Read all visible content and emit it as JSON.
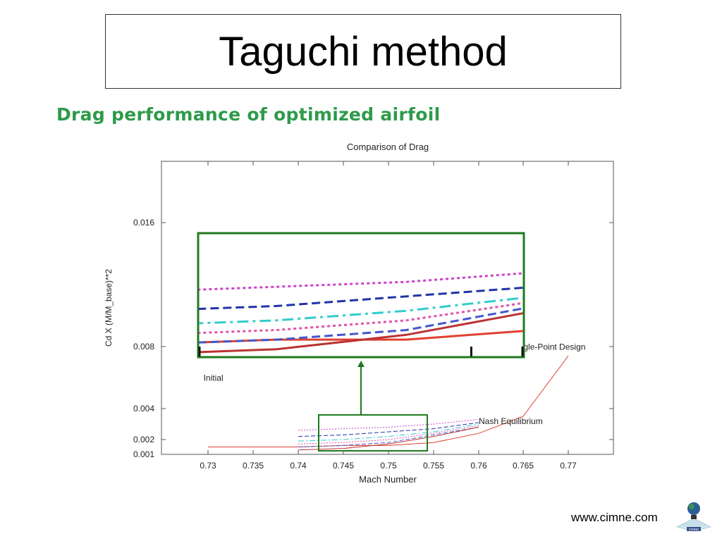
{
  "slide": {
    "title": "Taguchi method",
    "subtitle": "Drag performance of optimized airfoil",
    "footer_url": "www.cimne.com",
    "logo_text": "CIMNE",
    "accent_color": "#2e9a4a"
  },
  "chart_data": {
    "type": "line",
    "title": "Comparison of Drag",
    "xlabel": "Mach Number",
    "ylabel": "Cd X (M/M_base)**2",
    "xlim": [
      0.725,
      0.775
    ],
    "ylim": [
      0.001,
      0.02
    ],
    "x_ticks": [
      0.73,
      0.735,
      0.74,
      0.745,
      0.75,
      0.755,
      0.76,
      0.765,
      0.77
    ],
    "x_tick_labels": [
      "0.73",
      "0.735",
      "0.74",
      "0.745",
      "0.75",
      "0.755",
      "0.76",
      "0.765",
      "0.77"
    ],
    "y_ticks": [
      0.001,
      0.002,
      0.004,
      0.008,
      0.016
    ],
    "y_tick_labels": [
      "0.001",
      "0.002",
      "0.004",
      "0.008",
      "0.016"
    ],
    "grid": false,
    "series": [
      {
        "name": "Initial",
        "color": "#e04030",
        "style": "solid",
        "width": 1,
        "x": [
          0.73,
          0.735,
          0.74,
          0.745,
          0.75,
          0.755,
          0.76,
          0.765,
          0.77
        ],
        "y": [
          0.0015,
          0.0015,
          0.0015,
          0.0016,
          0.0016,
          0.0018,
          0.0024,
          0.0035,
          0.0074
        ]
      },
      {
        "color": "#cc44cc",
        "style": "dotted",
        "width": 1,
        "x": [
          0.74,
          0.745,
          0.75,
          0.755,
          0.76
        ],
        "y": [
          0.0026,
          0.0027,
          0.0028,
          0.003,
          0.0033
        ]
      },
      {
        "color": "#2233aa",
        "style": "dashed",
        "width": 1,
        "x": [
          0.74,
          0.745,
          0.75,
          0.755,
          0.76
        ],
        "y": [
          0.0022,
          0.0023,
          0.0025,
          0.0027,
          0.0031
        ]
      },
      {
        "color": "#33cccc",
        "style": "dashdot",
        "width": 1,
        "x": [
          0.74,
          0.745,
          0.75,
          0.755,
          0.76
        ],
        "y": [
          0.0019,
          0.002,
          0.0022,
          0.0025,
          0.003
        ]
      },
      {
        "color": "#dd55aa",
        "style": "dotted",
        "width": 1,
        "x": [
          0.74,
          0.745,
          0.75,
          0.755,
          0.76
        ],
        "y": [
          0.0017,
          0.0018,
          0.002,
          0.0024,
          0.0029
        ]
      },
      {
        "color": "#4455cc",
        "style": "dashed",
        "width": 1,
        "x": [
          0.74,
          0.745,
          0.75,
          0.755,
          0.76
        ],
        "y": [
          0.0015,
          0.0016,
          0.0018,
          0.0023,
          0.0028
        ]
      },
      {
        "color": "#bb3333",
        "style": "solid",
        "width": 1,
        "x": [
          0.74,
          0.745,
          0.75,
          0.755,
          0.76
        ],
        "y": [
          0.0013,
          0.0014,
          0.0017,
          0.0022,
          0.0028
        ]
      }
    ],
    "annotations": [
      {
        "text": "Initial",
        "x": 0.7295,
        "y": 0.0058
      },
      {
        "text": "Nash Equilibrium",
        "x": 0.76,
        "y": 0.003
      },
      {
        "text": "ngle-Point Design",
        "x": 0.7645,
        "y": 0.0078
      }
    ],
    "inset": {
      "x_range": [
        0.742,
        0.7545
      ],
      "y_range": [
        0.00125,
        0.0038
      ],
      "tick_x": [
        0.74,
        0.7525,
        0.765
      ]
    }
  }
}
